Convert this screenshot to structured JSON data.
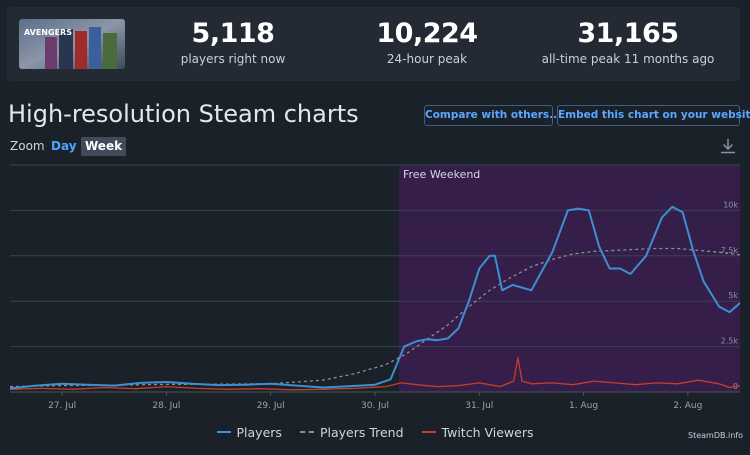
{
  "stats": [
    {
      "value": "5,118",
      "label": "players right now"
    },
    {
      "value": "10,224",
      "label": "24-hour peak"
    },
    {
      "value": "31,165",
      "label": "all-time peak 11 months ago"
    }
  ],
  "game_image": {
    "icon": "game-cover-image",
    "logo_text": "AVENGERS"
  },
  "page_title": "High-resolution Steam charts",
  "buttons": {
    "compare": "Compare with others...",
    "embed": "Embed this chart on your website"
  },
  "zoom": {
    "label": "Zoom",
    "options": [
      "Day",
      "Week"
    ],
    "selected": "Week"
  },
  "download_icon": "download-icon",
  "chart_data": {
    "type": "line",
    "band": {
      "label": "Free Weekend",
      "x_start": 3.73,
      "x_end": 7.0,
      "color": "#361e4a"
    },
    "x_range": [
      0,
      7.0
    ],
    "x_ticks": [
      {
        "x": 0.5,
        "label": "27. Jul"
      },
      {
        "x": 1.5,
        "label": "28. Jul"
      },
      {
        "x": 2.5,
        "label": "29. Jul"
      },
      {
        "x": 3.5,
        "label": "30. Jul"
      },
      {
        "x": 4.5,
        "label": "31. Jul"
      },
      {
        "x": 5.5,
        "label": "1. Aug"
      },
      {
        "x": 6.5,
        "label": "2. Aug"
      }
    ],
    "y_range": [
      0,
      12500
    ],
    "y_ticks": [
      {
        "y": 0,
        "label": "0"
      },
      {
        "y": 2500,
        "label": "2.5k"
      },
      {
        "y": 5000,
        "label": "5k"
      },
      {
        "y": 7500,
        "label": "7.5k"
      },
      {
        "y": 10000,
        "label": "10k"
      }
    ],
    "grid": true,
    "legend": "bottom-center",
    "series": [
      {
        "name": "Players",
        "color": "#3d8fd1",
        "style": "solid",
        "points": [
          [
            0,
            200
          ],
          [
            0.25,
            350
          ],
          [
            0.5,
            450
          ],
          [
            0.75,
            400
          ],
          [
            1.0,
            350
          ],
          [
            1.25,
            500
          ],
          [
            1.5,
            550
          ],
          [
            1.75,
            450
          ],
          [
            2.0,
            380
          ],
          [
            2.25,
            400
          ],
          [
            2.5,
            450
          ],
          [
            2.75,
            350
          ],
          [
            3.0,
            250
          ],
          [
            3.25,
            320
          ],
          [
            3.5,
            400
          ],
          [
            3.65,
            700
          ],
          [
            3.78,
            2500
          ],
          [
            3.9,
            2800
          ],
          [
            4.0,
            2900
          ],
          [
            4.1,
            2850
          ],
          [
            4.2,
            2950
          ],
          [
            4.3,
            3500
          ],
          [
            4.4,
            5000
          ],
          [
            4.5,
            6800
          ],
          [
            4.6,
            7500
          ],
          [
            4.65,
            7500
          ],
          [
            4.72,
            5600
          ],
          [
            4.82,
            5900
          ],
          [
            5.0,
            5600
          ],
          [
            5.2,
            7700
          ],
          [
            5.35,
            10000
          ],
          [
            5.45,
            10100
          ],
          [
            5.55,
            10000
          ],
          [
            5.65,
            8000
          ],
          [
            5.75,
            6800
          ],
          [
            5.85,
            6800
          ],
          [
            5.95,
            6500
          ],
          [
            6.1,
            7500
          ],
          [
            6.25,
            9600
          ],
          [
            6.35,
            10200
          ],
          [
            6.45,
            9900
          ],
          [
            6.55,
            7800
          ],
          [
            6.65,
            6100
          ],
          [
            6.8,
            4700
          ],
          [
            6.9,
            4400
          ],
          [
            7.0,
            4900
          ]
        ]
      },
      {
        "name": "Players Trend",
        "color": "#8a8f96",
        "style": "dashed",
        "points": [
          [
            0,
            300
          ],
          [
            0.5,
            350
          ],
          [
            1.0,
            380
          ],
          [
            1.5,
            420
          ],
          [
            2.0,
            430
          ],
          [
            2.5,
            450
          ],
          [
            3.0,
            650
          ],
          [
            3.3,
            1000
          ],
          [
            3.6,
            1500
          ],
          [
            3.8,
            2100
          ],
          [
            4.0,
            2900
          ],
          [
            4.2,
            3700
          ],
          [
            4.4,
            4700
          ],
          [
            4.6,
            5600
          ],
          [
            4.8,
            6300
          ],
          [
            5.0,
            6900
          ],
          [
            5.2,
            7300
          ],
          [
            5.4,
            7600
          ],
          [
            5.6,
            7750
          ],
          [
            5.8,
            7800
          ],
          [
            6.0,
            7850
          ],
          [
            6.2,
            7900
          ],
          [
            6.4,
            7900
          ],
          [
            6.6,
            7800
          ],
          [
            6.8,
            7700
          ],
          [
            7.0,
            7550
          ]
        ]
      },
      {
        "name": "Twitch Viewers",
        "color": "#c43e2c",
        "style": "solid",
        "points": [
          [
            0,
            150
          ],
          [
            0.3,
            200
          ],
          [
            0.6,
            150
          ],
          [
            0.9,
            250
          ],
          [
            1.2,
            180
          ],
          [
            1.5,
            300
          ],
          [
            1.8,
            200
          ],
          [
            2.1,
            150
          ],
          [
            2.4,
            180
          ],
          [
            2.7,
            120
          ],
          [
            3.0,
            150
          ],
          [
            3.3,
            200
          ],
          [
            3.6,
            300
          ],
          [
            3.75,
            500
          ],
          [
            3.9,
            400
          ],
          [
            4.1,
            300
          ],
          [
            4.3,
            350
          ],
          [
            4.5,
            500
          ],
          [
            4.6,
            400
          ],
          [
            4.7,
            300
          ],
          [
            4.83,
            600
          ],
          [
            4.87,
            1900
          ],
          [
            4.91,
            600
          ],
          [
            5.0,
            450
          ],
          [
            5.2,
            500
          ],
          [
            5.4,
            400
          ],
          [
            5.6,
            600
          ],
          [
            5.8,
            500
          ],
          [
            6.0,
            400
          ],
          [
            6.2,
            500
          ],
          [
            6.4,
            450
          ],
          [
            6.6,
            650
          ],
          [
            6.8,
            450
          ],
          [
            6.9,
            250
          ],
          [
            7.0,
            350
          ]
        ]
      }
    ]
  },
  "credit": "SteamDB.info"
}
